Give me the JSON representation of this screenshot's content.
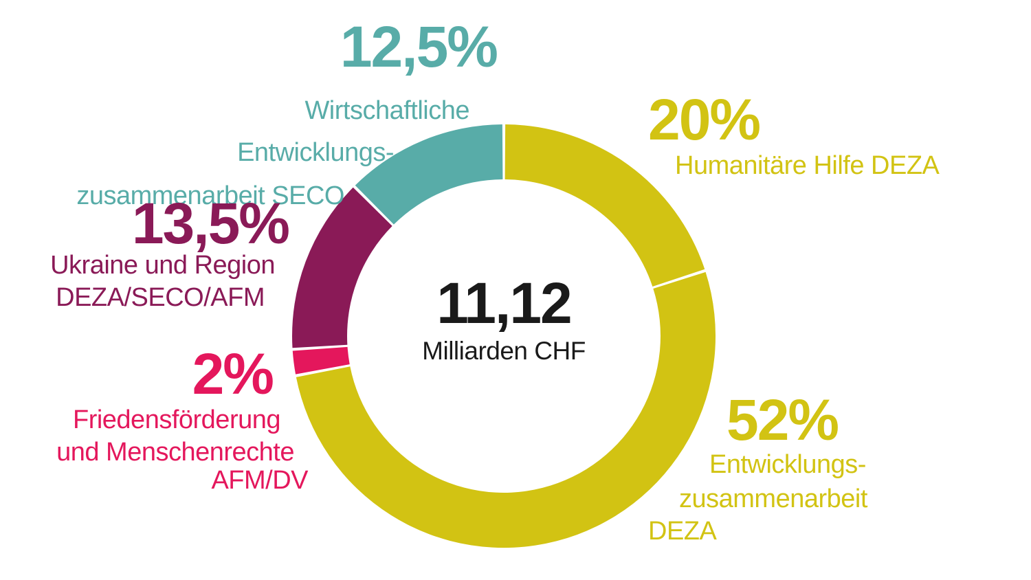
{
  "chart_data": {
    "type": "pie",
    "subtype": "donut",
    "title": "",
    "center_text": {
      "value": "11,12",
      "unit": "Milliarden CHF"
    },
    "start_angle_deg": 0,
    "direction": "clockwise",
    "gap_deg": 0.8,
    "segments": [
      {
        "label": "Humanitäre Hilfe DEZA",
        "value_pct": 20,
        "display": "20%",
        "color": "#d2c313"
      },
      {
        "label": "Entwicklungszusammenarbeit DEZA",
        "value_pct": 52,
        "display": "52%",
        "color": "#d2c313"
      },
      {
        "label": "Friedensförderung und Menschenrechte AFM/DV",
        "value_pct": 2,
        "display": "2%",
        "color": "#e4175c"
      },
      {
        "label": "Ukraine und Region DEZA/SECO/AFM",
        "value_pct": 13.5,
        "display": "13,5%",
        "color": "#8a1a57"
      },
      {
        "label": "Wirtschaftliche Entwicklungszusammenarbeit SECO",
        "value_pct": 12.5,
        "display": "12,5%",
        "color": "#58aca8"
      }
    ]
  },
  "callouts": {
    "seco": {
      "pct": "12,5%",
      "lines": [
        "Wirtschaftliche",
        "Entwicklungs-",
        "zusammenarbeit SECO"
      ]
    },
    "humanitaere": {
      "pct": "20%",
      "lines": [
        "Humanitäre Hilfe DEZA"
      ]
    },
    "ukraine": {
      "pct": "13,5%",
      "lines": [
        "Ukraine und Region",
        "DEZA/SECO/AFM"
      ]
    },
    "frieden": {
      "pct": "2%",
      "lines": [
        "Friedensförderung",
        "und Menschenrechte",
        "AFM/DV"
      ]
    },
    "entwicklung": {
      "pct": "52%",
      "lines": [
        "Entwicklungs-",
        "zusammenarbeit",
        "DEZA"
      ]
    }
  },
  "colors": {
    "teal": "#58aca8",
    "yellow": "#d2c313",
    "maroon": "#8a1a57",
    "pink": "#e4175c",
    "center_text": "#1a1a1a"
  }
}
